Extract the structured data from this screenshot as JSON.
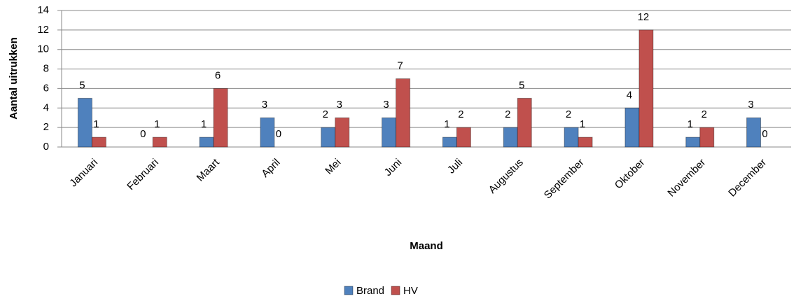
{
  "chart_data": {
    "type": "bar",
    "categories": [
      "Januari",
      "Februari",
      "Maart",
      "April",
      "Mei",
      "Juni",
      "Juli",
      "Augustus",
      "September",
      "Oktober",
      "November",
      "December"
    ],
    "series": [
      {
        "name": "Brand",
        "color": "#4f81bd",
        "values": [
          5,
          0,
          1,
          3,
          2,
          3,
          1,
          2,
          2,
          4,
          1,
          3
        ]
      },
      {
        "name": "HV",
        "color": "#c0504d",
        "values": [
          1,
          1,
          6,
          0,
          3,
          7,
          2,
          5,
          1,
          12,
          2,
          0
        ]
      }
    ],
    "x_label": "Maand",
    "y_label": "Aantal uitrukken",
    "ylim": [
      0,
      14
    ],
    "yticks": [
      0,
      2,
      4,
      6,
      8,
      10,
      12,
      14
    ],
    "grid": true,
    "legend": "bottom"
  }
}
